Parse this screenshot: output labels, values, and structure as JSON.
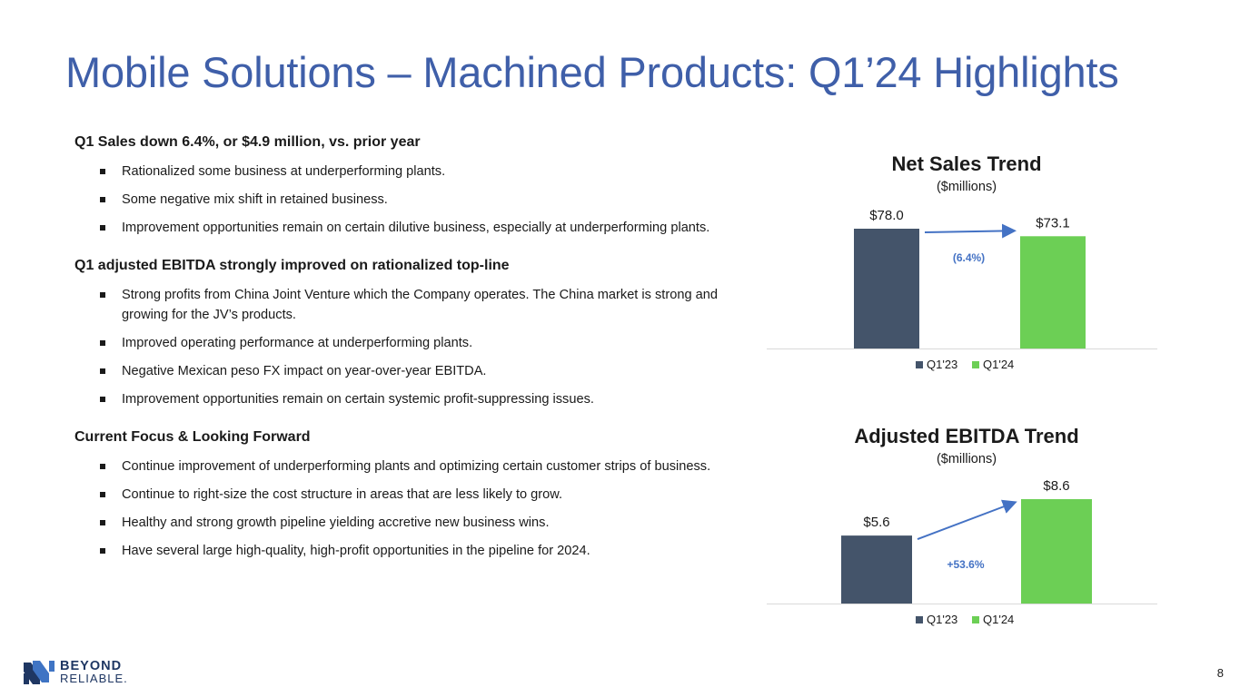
{
  "slide": {
    "title": "Mobile Solutions – Machined Products: Q1’24 Highlights",
    "page_number": "8"
  },
  "sections": [
    {
      "heading": "Q1 Sales down 6.4%, or $4.9 million, vs. prior year",
      "bullets": [
        "Rationalized some business at underperforming plants.",
        "Some negative mix shift in retained business.",
        "Improvement opportunities remain on certain dilutive business, especially at underperforming plants."
      ]
    },
    {
      "heading": "Q1 adjusted EBITDA strongly improved on rationalized top-line",
      "bullets": [
        "Strong profits from China Joint Venture which the Company operates. The China market is strong and growing for the JV’s products.",
        "Improved operating performance at underperforming plants.",
        "Negative Mexican peso FX impact on year-over-year EBITDA.",
        "Improvement opportunities remain on certain systemic profit-suppressing issues."
      ]
    },
    {
      "heading": "Current Focus & Looking Forward",
      "bullets": [
        "Continue improvement of underperforming plants and optimizing certain customer strips of business.",
        "Continue to right-size the cost structure in areas that are less likely to grow.",
        "Healthy and strong growth pipeline yielding accretive new business wins.",
        "Have several large high-quality, high-profit opportunities in the pipeline for 2024."
      ]
    }
  ],
  "chart_data": [
    {
      "type": "bar",
      "title": "Net Sales Trend",
      "subtitle": "($millions)",
      "categories": [
        "Q1'23",
        "Q1'24"
      ],
      "values": [
        78.0,
        73.1
      ],
      "value_labels": [
        "$78.0",
        "$73.1"
      ],
      "change_label": "(6.4%)",
      "legend": [
        "Q1'23",
        "Q1'24"
      ],
      "legend_placement": "bottom",
      "colors": [
        "#44546a",
        "#6ccf55"
      ],
      "arrow_color": "#4472c4",
      "xlabel": "",
      "ylabel": "",
      "grid": false
    },
    {
      "type": "bar",
      "title": "Adjusted EBITDA Trend",
      "subtitle": "($millions)",
      "categories": [
        "Q1'23",
        "Q1'24"
      ],
      "values": [
        5.6,
        8.6
      ],
      "value_labels": [
        "$5.6",
        "$8.6"
      ],
      "change_label": "+53.6%",
      "legend": [
        "Q1'23",
        "Q1'24"
      ],
      "legend_placement": "bottom",
      "colors": [
        "#44546a",
        "#6ccf55"
      ],
      "arrow_color": "#4472c4",
      "xlabel": "",
      "ylabel": "",
      "grid": false
    }
  ],
  "logo": {
    "line1": "BEYOND",
    "line2": "RELIABLE."
  }
}
